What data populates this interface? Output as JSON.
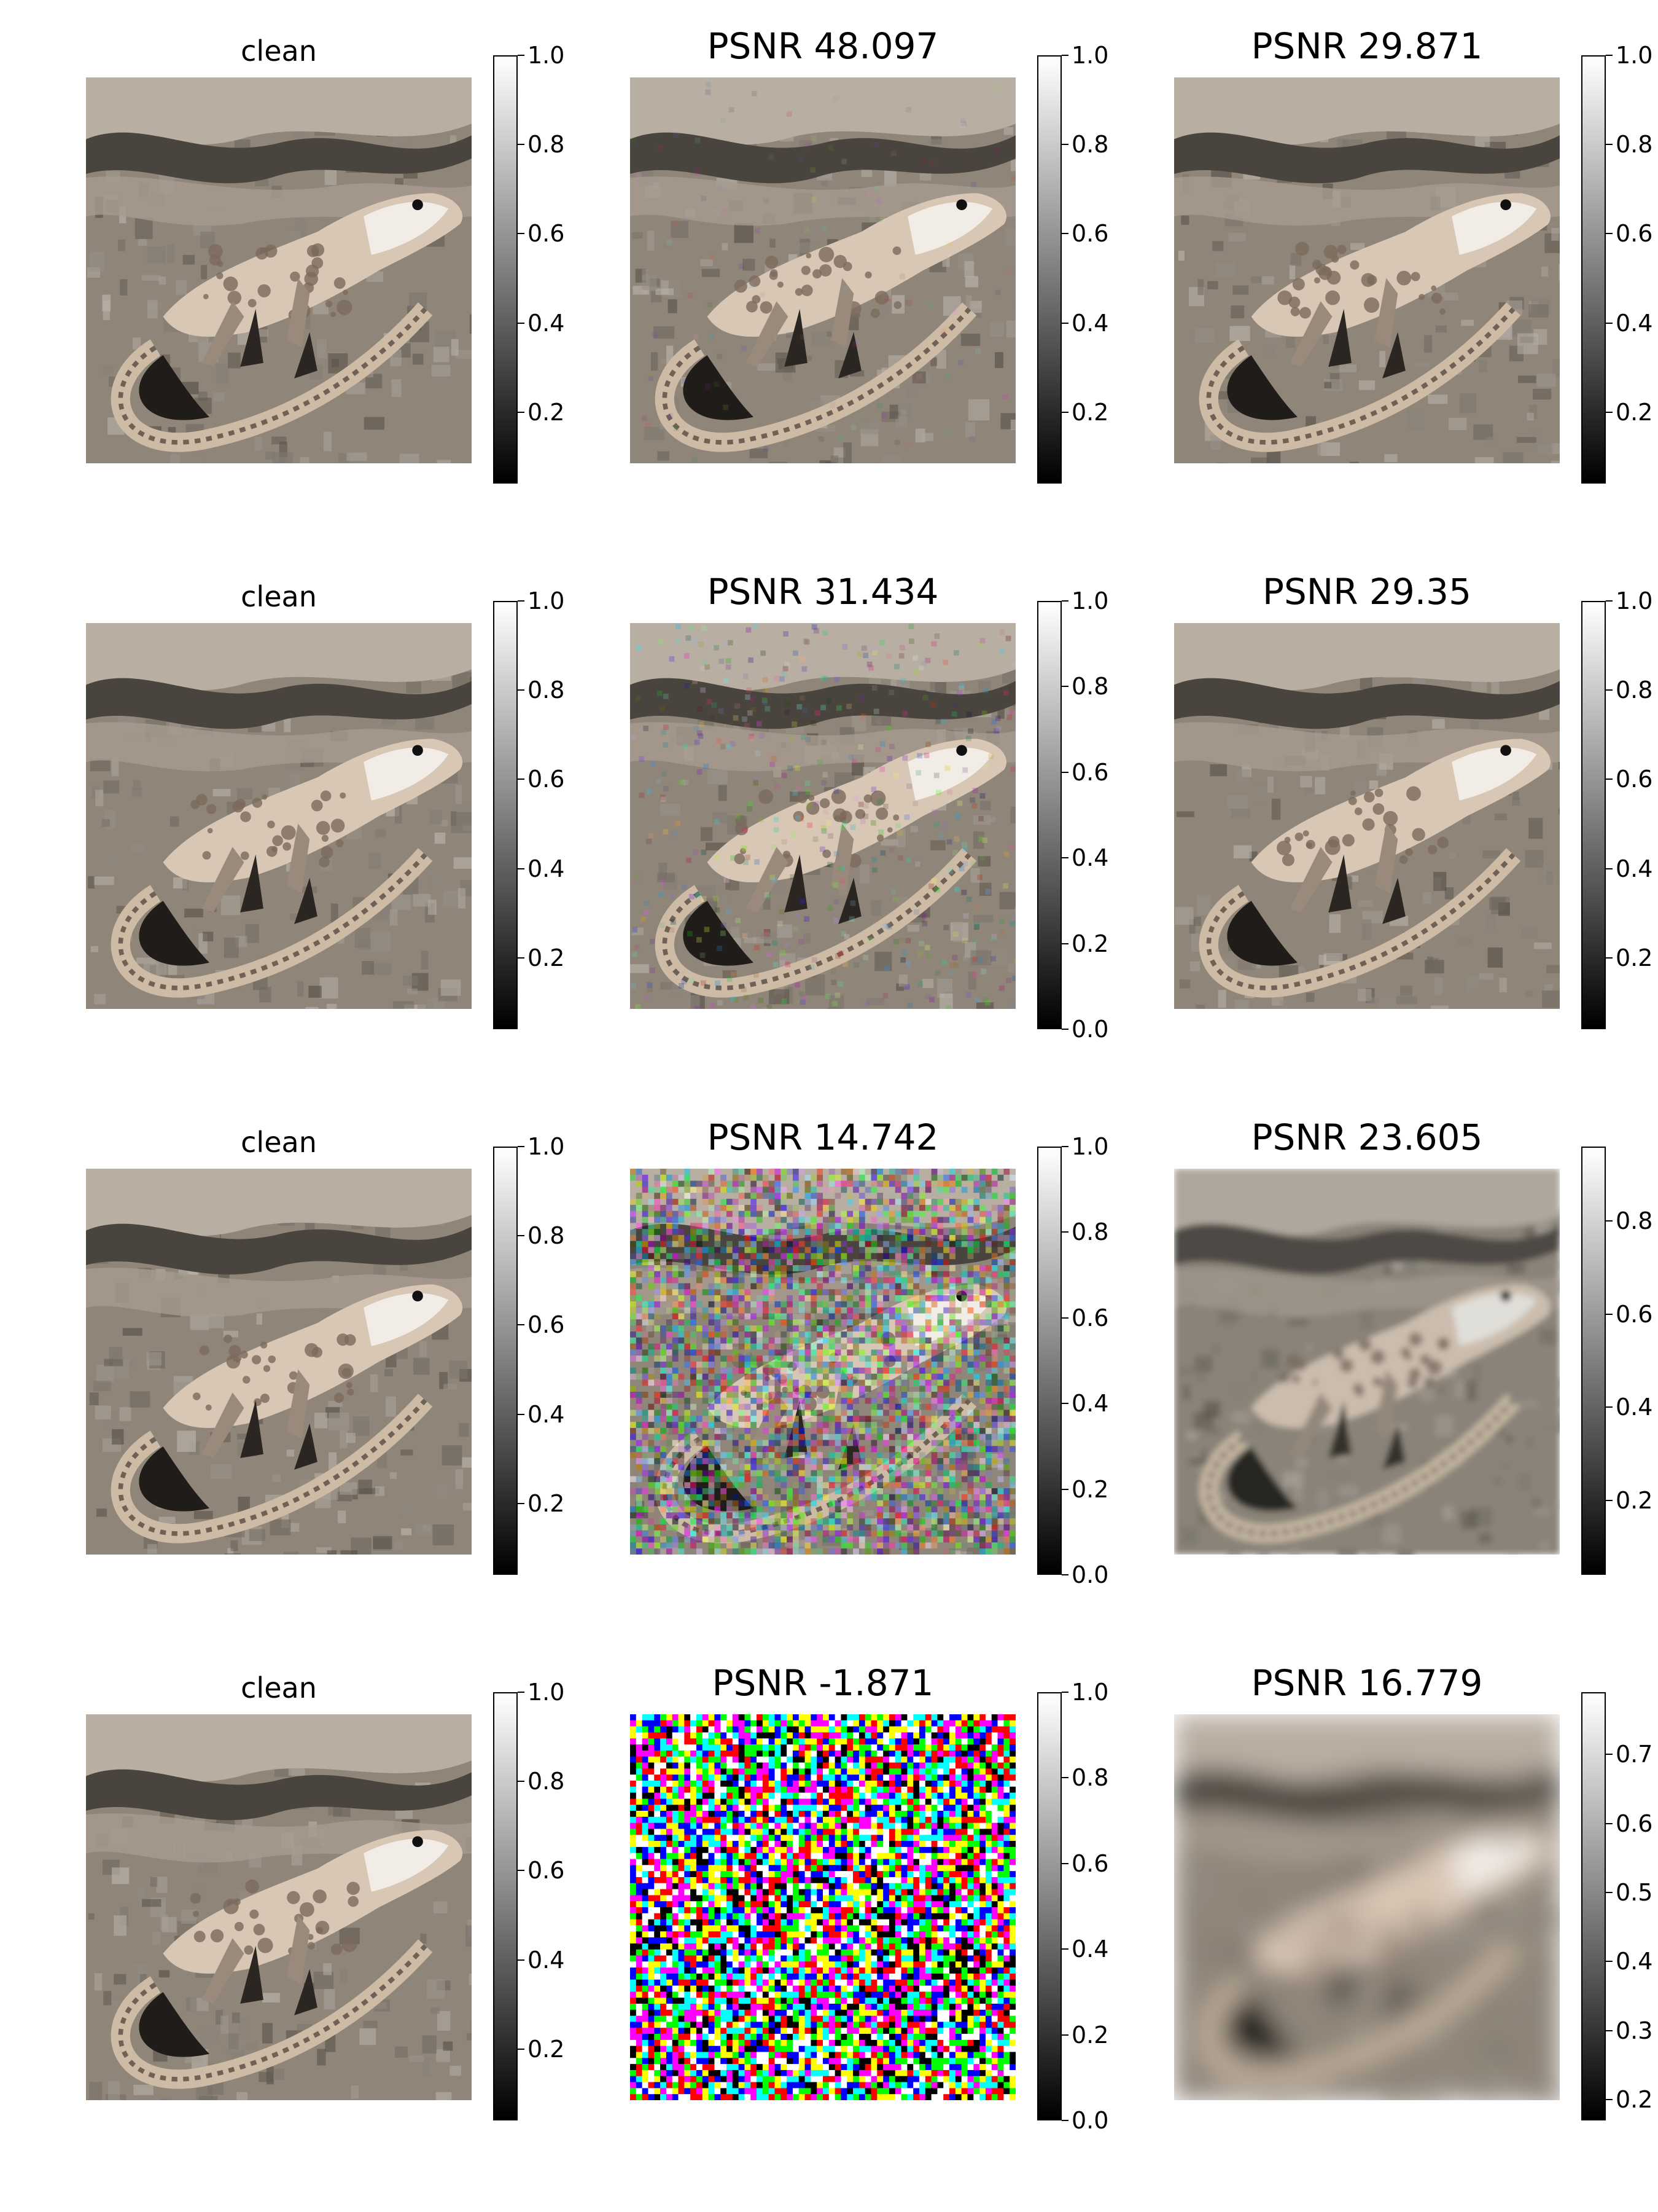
{
  "figure": {
    "rows": [
      {
        "panels": [
          {
            "title": "clean",
            "image": "clean",
            "colorbar": {
              "min": 0.04,
              "max": 1.0,
              "ticks": [
                "1.0",
                "0.8",
                "0.6",
                "0.4",
                "0.2"
              ]
            }
          },
          {
            "title": "PSNR 48.097",
            "image": "noisy-faint",
            "colorbar": {
              "min": 0.04,
              "max": 1.0,
              "ticks": [
                "1.0",
                "0.8",
                "0.6",
                "0.4",
                "0.2"
              ]
            }
          },
          {
            "title": "PSNR 29.871",
            "image": "denoised-sharp",
            "colorbar": {
              "min": 0.04,
              "max": 1.0,
              "ticks": [
                "1.0",
                "0.8",
                "0.6",
                "0.4",
                "0.2"
              ]
            }
          }
        ]
      },
      {
        "panels": [
          {
            "title": "clean",
            "image": "clean",
            "colorbar": {
              "min": 0.04,
              "max": 1.0,
              "ticks": [
                "1.0",
                "0.8",
                "0.6",
                "0.4",
                "0.2"
              ]
            }
          },
          {
            "title": "PSNR 31.434",
            "image": "noisy-light",
            "colorbar": {
              "min": 0.0,
              "max": 1.0,
              "ticks": [
                "1.0",
                "0.8",
                "0.6",
                "0.4",
                "0.2",
                "0.0"
              ]
            }
          },
          {
            "title": "PSNR 29.35",
            "image": "denoised-sharp",
            "colorbar": {
              "min": 0.04,
              "max": 1.0,
              "ticks": [
                "1.0",
                "0.8",
                "0.6",
                "0.4",
                "0.2"
              ]
            }
          }
        ]
      },
      {
        "panels": [
          {
            "title": "clean",
            "image": "clean",
            "colorbar": {
              "min": 0.04,
              "max": 1.0,
              "ticks": [
                "1.0",
                "0.8",
                "0.6",
                "0.4",
                "0.2"
              ]
            }
          },
          {
            "title": "PSNR 14.742",
            "image": "noisy-heavy",
            "colorbar": {
              "min": 0.0,
              "max": 1.0,
              "ticks": [
                "1.0",
                "0.8",
                "0.6",
                "0.4",
                "0.2",
                "0.0"
              ]
            }
          },
          {
            "title": "PSNR 23.605",
            "image": "denoised-soft",
            "colorbar": {
              "min": 0.04,
              "max": 0.96,
              "ticks": [
                "0.8",
                "0.6",
                "0.4",
                "0.2"
              ]
            }
          }
        ]
      },
      {
        "panels": [
          {
            "title": "clean",
            "image": "clean",
            "colorbar": {
              "min": 0.04,
              "max": 1.0,
              "ticks": [
                "1.0",
                "0.8",
                "0.6",
                "0.4",
                "0.2"
              ]
            }
          },
          {
            "title": "PSNR -1.871",
            "image": "pure-noise",
            "colorbar": {
              "min": 0.0,
              "max": 1.0,
              "ticks": [
                "1.0",
                "0.8",
                "0.6",
                "0.4",
                "0.2",
                "0.0"
              ]
            }
          },
          {
            "title": "PSNR 16.779",
            "image": "denoised-blurry",
            "colorbar": {
              "min": 0.17,
              "max": 0.79,
              "ticks": [
                "0.7",
                "0.6",
                "0.5",
                "0.4",
                "0.3",
                "0.2"
              ]
            }
          }
        ]
      }
    ]
  },
  "colors": {
    "background": "#ffffff",
    "sand_light": "#bfb3a6",
    "sand_dark": "#4a443e",
    "lizard_body": "#d9c7b5",
    "lizard_throat": "#f1ece6"
  }
}
